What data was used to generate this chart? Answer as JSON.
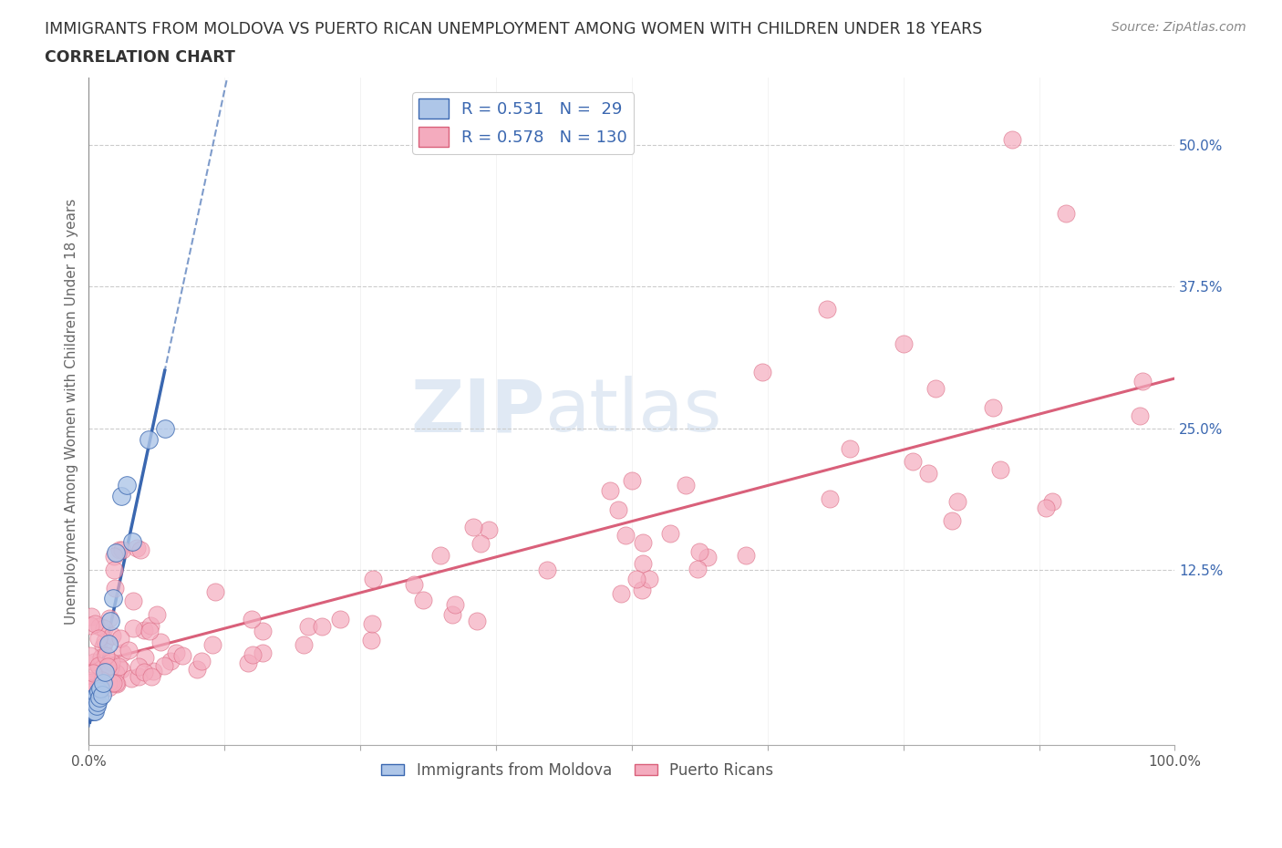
{
  "title_line1": "IMMIGRANTS FROM MOLDOVA VS PUERTO RICAN UNEMPLOYMENT AMONG WOMEN WITH CHILDREN UNDER 18 YEARS",
  "title_line2": "CORRELATION CHART",
  "source_text": "Source: ZipAtlas.com",
  "ylabel": "Unemployment Among Women with Children Under 18 years",
  "watermark_zip": "ZIP",
  "watermark_atlas": "atlas",
  "xlim": [
    0.0,
    1.0
  ],
  "ylim": [
    -0.03,
    0.56
  ],
  "moldova_R": 0.531,
  "moldova_N": 29,
  "puerto_R": 0.578,
  "puerto_N": 130,
  "legend_labels": [
    "Immigrants from Moldova",
    "Puerto Ricans"
  ],
  "color_moldova": "#aec6e8",
  "color_moldova_line": "#3a67b0",
  "color_puerto": "#f4abbe",
  "color_puerto_line": "#d9607a",
  "label_color": "#3a67b0",
  "grid_color": "#cccccc",
  "background_color": "#ffffff"
}
